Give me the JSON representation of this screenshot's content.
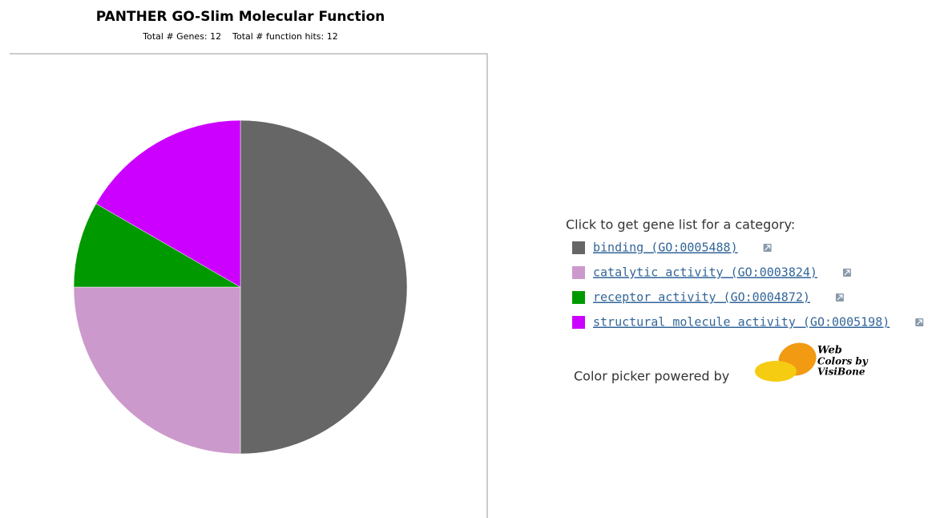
{
  "chart_data": {
    "type": "pie",
    "title": "PANTHER GO-Slim Molecular Function",
    "subtitle": "Total # Genes: 12    Total # function hits: 12",
    "categories": [
      "binding (GO:0005488)",
      "catalytic activity (GO:0003824)",
      "receptor activity (GO:0004872)",
      "structural molecule activity (GO:0005198)"
    ],
    "values": [
      6,
      3,
      1,
      2
    ],
    "colors": [
      "#666666",
      "#cc99cc",
      "#009900",
      "#cc00ff"
    ],
    "legend_title": "Click to get gene list for a category:",
    "legend_position": "right"
  },
  "footer": {
    "text": "Color picker powered by",
    "logo_text": [
      "Web",
      "Colors by",
      "VisiBone"
    ]
  }
}
